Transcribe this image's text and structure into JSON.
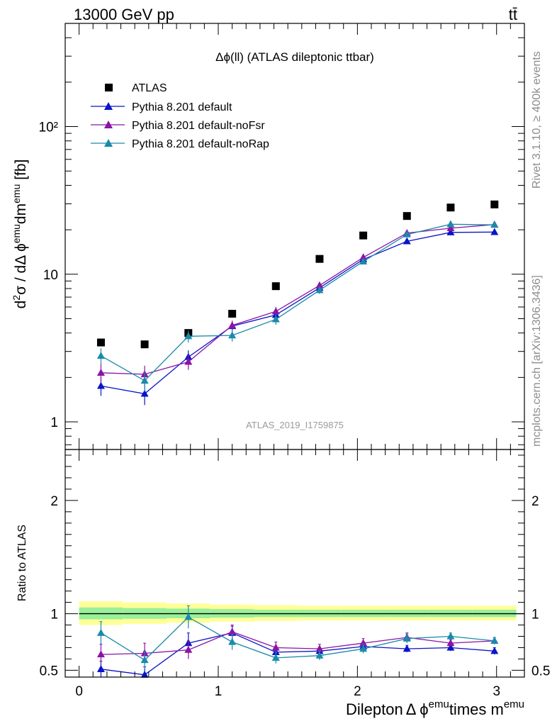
{
  "header": {
    "energy_label": "13000 GeV pp",
    "process_label": "tt̄"
  },
  "side_labels": {
    "generator": "Rivet 3.1.10, ≥ 400k events",
    "site": "mcplots.cern.ch [arXiv:1306.3436]"
  },
  "colors": {
    "data": "#000000",
    "default": "#0a14c8",
    "noFsr": "#8a14a6",
    "noRap": "#1a8aaa",
    "band_outer": "#ffff99",
    "band_inner": "#99f099"
  },
  "chart_data": [
    {
      "type": "scatter",
      "panel": "main",
      "title": "Δϕ(ll) (ATLAS dileptonic ttbar)",
      "analysis_label": "ATLAS_2019_I1759875",
      "ylabel": "d²σ / dΔ ϕᵉᵐᵘdmᵉᵐᵘ [fb]",
      "ylabel_parts": {
        "main": "d",
        "sup1": "2",
        "mid": "σ / dΔ ϕ",
        "sup2": "emu",
        "mid2": "dm",
        "sup3": "emu",
        "tail": " [fb]"
      },
      "yscale": "log",
      "ylim": [
        0.65,
        500
      ],
      "xlim": [
        -0.1,
        3.2
      ],
      "yticks": [
        1,
        10,
        100
      ],
      "ytick_labels": [
        "1",
        "10",
        "10²"
      ],
      "legend_position": "top-left",
      "x": [
        0.157,
        0.471,
        0.785,
        1.1,
        1.414,
        1.728,
        2.042,
        2.356,
        2.67,
        2.985
      ],
      "series": [
        {
          "name": "ATLAS",
          "key": "data",
          "marker": "square",
          "values": [
            3.45,
            3.35,
            4.0,
            5.4,
            8.3,
            12.7,
            18.3,
            24.8,
            28.3,
            29.7
          ]
        },
        {
          "name": "Pythia 8.201 default",
          "key": "default",
          "marker": "triangle",
          "values": [
            1.75,
            1.55,
            2.75,
            4.45,
            5.3,
            8.1,
            12.6,
            16.7,
            19.2,
            19.3
          ],
          "errors": [
            0.25,
            0.25,
            0.3,
            0.3,
            0.35,
            0.4,
            0.5,
            0.6,
            0.6,
            0.6
          ]
        },
        {
          "name": "Pythia 8.201 default-noFsr",
          "key": "noFsr",
          "marker": "triangle",
          "values": [
            2.15,
            2.1,
            2.55,
            4.5,
            5.6,
            8.4,
            13.0,
            19.0,
            20.5,
            21.7
          ],
          "errors": [
            0.3,
            0.3,
            0.3,
            0.35,
            0.4,
            0.45,
            0.5,
            0.6,
            0.7,
            0.7
          ]
        },
        {
          "name": "Pythia 8.201 default-noRap",
          "key": "noRap",
          "marker": "triangle",
          "values": [
            2.8,
            1.9,
            3.8,
            3.85,
            4.95,
            7.8,
            12.2,
            18.6,
            21.8,
            21.6
          ],
          "errors": [
            0.35,
            0.3,
            0.35,
            0.35,
            0.4,
            0.45,
            0.5,
            0.6,
            0.7,
            0.7
          ]
        }
      ]
    },
    {
      "type": "line",
      "panel": "ratio",
      "ylabel": "Ratio to ATLAS",
      "xlabel_parts": {
        "a": "Dilepton",
        "b": "Δ ϕ",
        "sup1": "emu",
        "c": "times m",
        "sup2": "emu"
      },
      "xlabel": "DileptonΔ ϕemutimes memu",
      "ylim": [
        0.44,
        2.45
      ],
      "xlim": [
        -0.1,
        3.2
      ],
      "yticks": [
        0.5,
        1,
        2
      ],
      "ytick_labels": [
        "0.5",
        "1",
        "2"
      ],
      "xticks": [
        0,
        1,
        2,
        3
      ],
      "xtick_labels": [
        "0",
        "1",
        "2",
        "3"
      ],
      "band": {
        "x_edges": [
          0,
          0.314,
          0.628,
          0.942,
          1.257,
          1.571,
          1.885,
          2.199,
          2.513,
          2.827,
          3.142
        ],
        "outer_low": [
          0.9,
          0.91,
          0.92,
          0.93,
          0.935,
          0.94,
          0.94,
          0.94,
          0.94,
          0.94
        ],
        "outer_high": [
          1.11,
          1.1,
          1.09,
          1.08,
          1.075,
          1.07,
          1.07,
          1.07,
          1.07,
          1.07
        ],
        "inner_low": [
          0.95,
          0.955,
          0.96,
          0.965,
          0.97,
          0.97,
          0.97,
          0.97,
          0.97,
          0.97
        ],
        "inner_high": [
          1.055,
          1.05,
          1.045,
          1.04,
          1.035,
          1.035,
          1.035,
          1.035,
          1.035,
          1.035
        ]
      },
      "x": [
        0.157,
        0.471,
        0.785,
        1.1,
        1.414,
        1.728,
        2.042,
        2.356,
        2.67,
        2.985
      ],
      "series": [
        {
          "name": "Pythia 8.201 default",
          "key": "default",
          "values": [
            0.51,
            0.46,
            0.74,
            0.83,
            0.66,
            0.67,
            0.71,
            0.69,
            0.7,
            0.67
          ],
          "errors": [
            0.07,
            0.07,
            0.09,
            0.06,
            0.04,
            0.03,
            0.03,
            0.03,
            0.03,
            0.03
          ]
        },
        {
          "name": "Pythia 8.201 default-noFsr",
          "key": "noFsr",
          "values": [
            0.64,
            0.65,
            0.68,
            0.84,
            0.7,
            0.69,
            0.74,
            0.79,
            0.74,
            0.76
          ],
          "errors": [
            0.09,
            0.09,
            0.08,
            0.06,
            0.05,
            0.04,
            0.04,
            0.04,
            0.03,
            0.03
          ]
        },
        {
          "name": "Pythia 8.201 default-noRap",
          "key": "noRap",
          "values": [
            0.83,
            0.59,
            0.97,
            0.75,
            0.61,
            0.63,
            0.69,
            0.78,
            0.8,
            0.76
          ],
          "errors": [
            0.1,
            0.08,
            0.1,
            0.07,
            0.05,
            0.04,
            0.04,
            0.04,
            0.03,
            0.03
          ]
        }
      ]
    }
  ]
}
